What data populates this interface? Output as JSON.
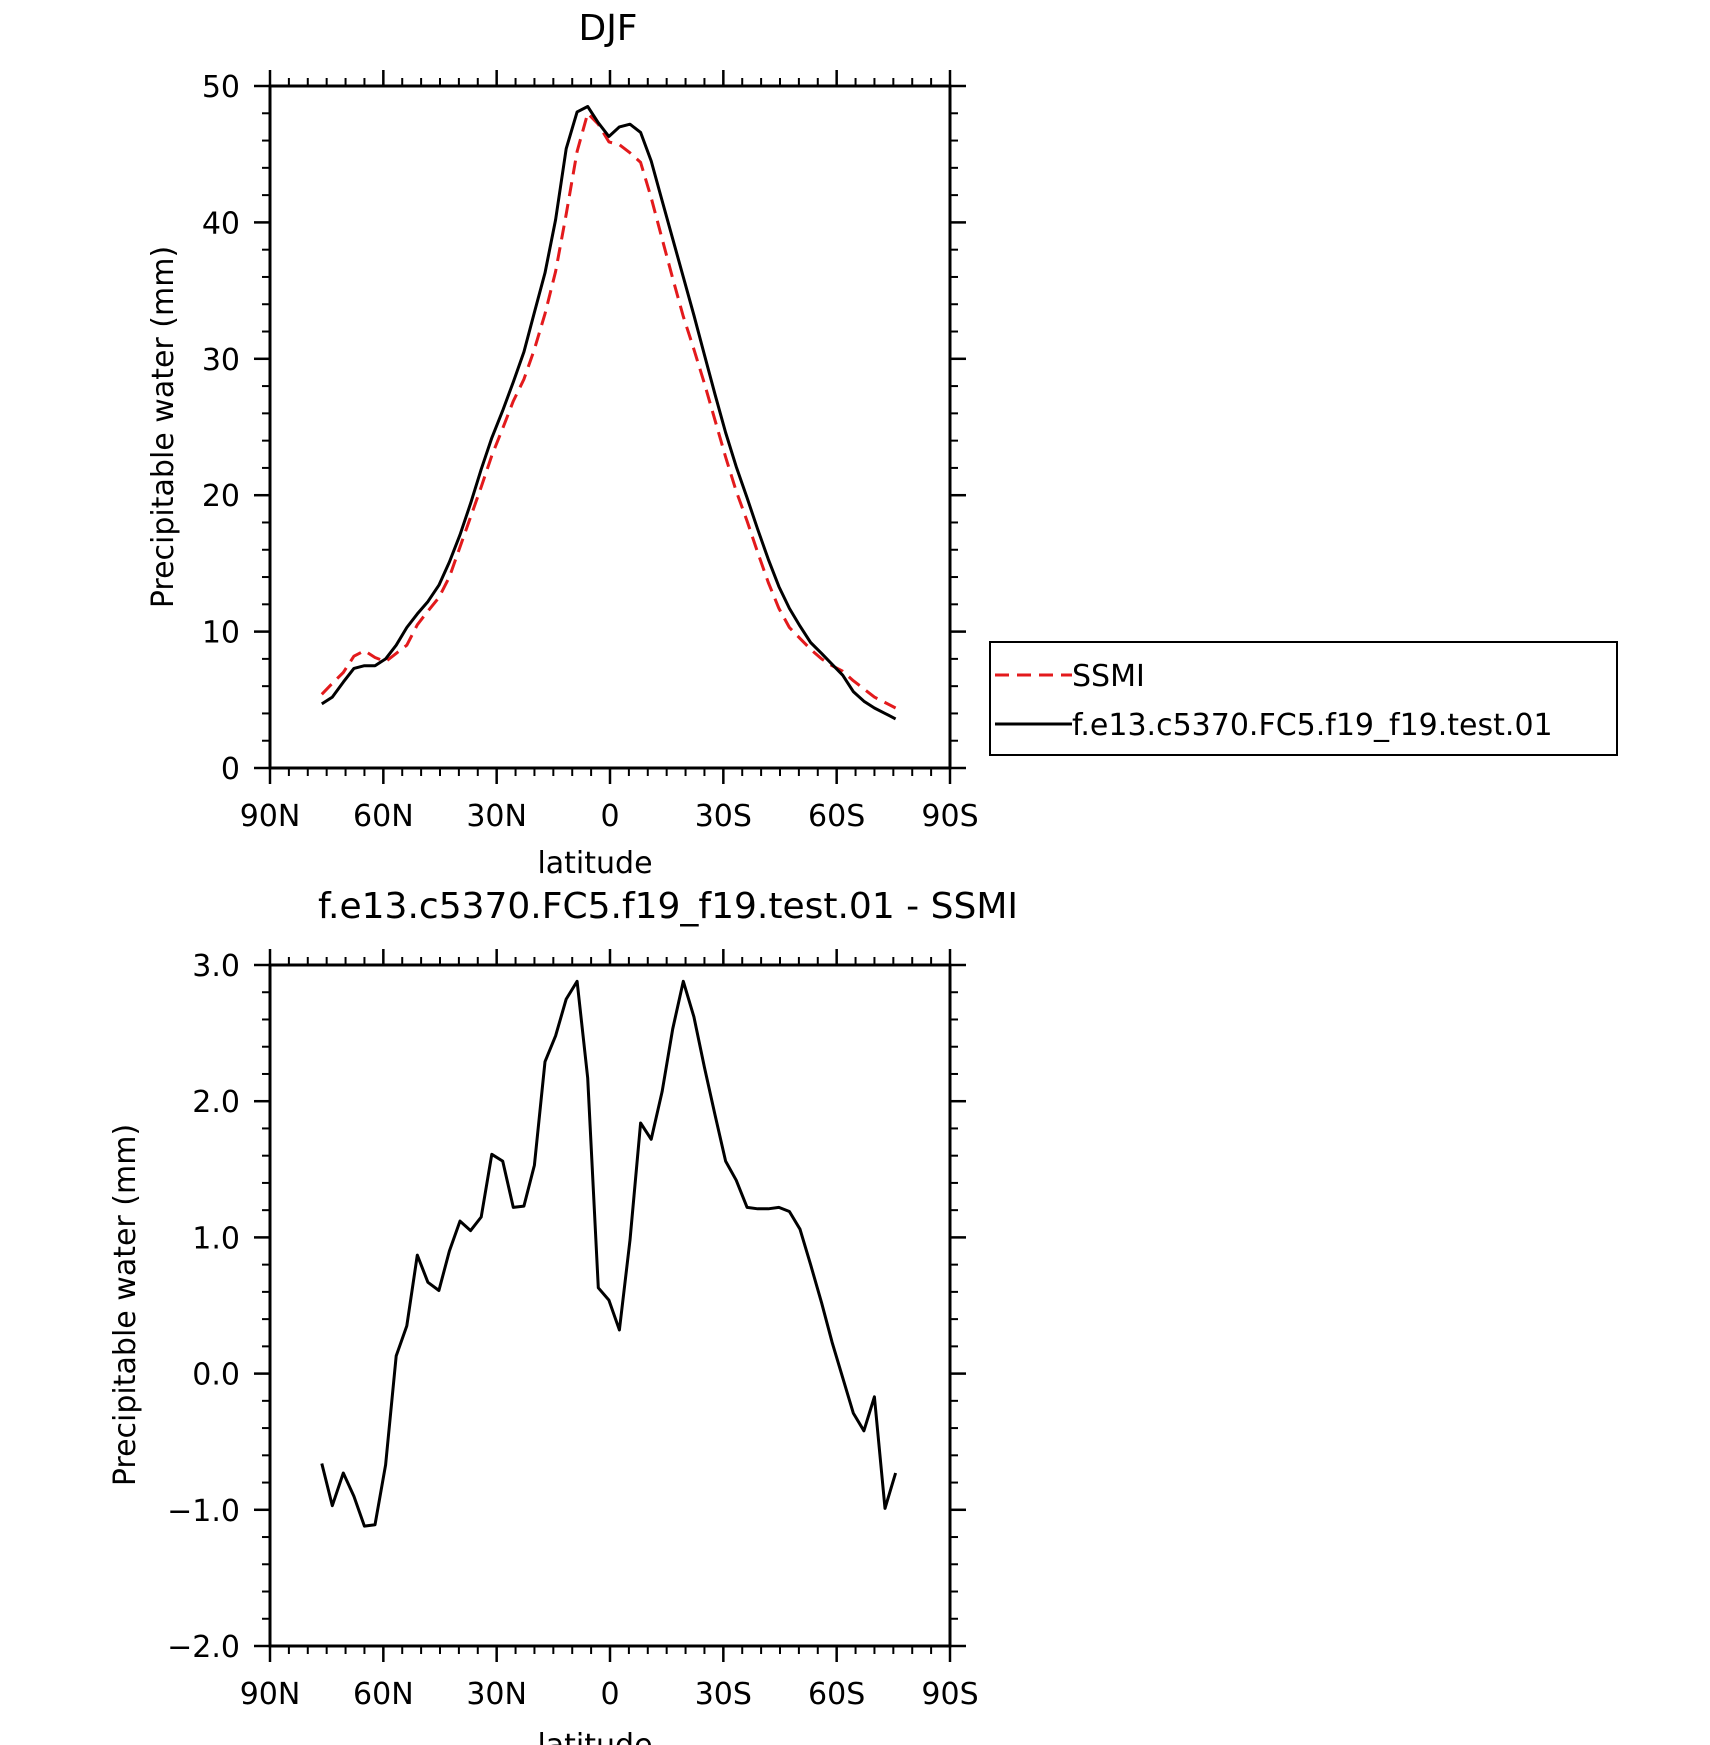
{
  "chart_data": [
    {
      "type": "line",
      "title": "DJF",
      "xlabel": "latitude",
      "ylabel": "Precipitable water (mm)",
      "xlim": [
        90,
        -90
      ],
      "ylim": [
        0,
        50
      ],
      "x_ticks": [
        90,
        60,
        30,
        0,
        -30,
        -60,
        -90
      ],
      "x_tick_labels": [
        "90N",
        "60N",
        "30N",
        "0",
        "30S",
        "60S",
        "90S"
      ],
      "y_ticks": [
        0,
        10,
        20,
        30,
        40,
        50
      ],
      "y_tick_labels": [
        "0",
        "10",
        "20",
        "30",
        "40",
        "50"
      ],
      "grid": false,
      "legend_position": "right",
      "series": [
        {
          "name": "SSMI",
          "color": "#e31a1c",
          "dash": "dashed",
          "x": [
            76.3,
            73.5,
            70.6,
            67.8,
            65.0,
            62.2,
            59.4,
            56.6,
            53.8,
            51.0,
            48.2,
            45.3,
            42.5,
            39.7,
            36.9,
            34.1,
            31.3,
            28.4,
            25.6,
            22.8,
            20.0,
            17.2,
            14.4,
            11.6,
            8.7,
            5.9,
            3.1,
            0.3,
            -2.5,
            -5.3,
            -8.1,
            -10.9,
            -13.8,
            -16.6,
            -19.4,
            -22.2,
            -25.0,
            -27.8,
            -30.6,
            -33.4,
            -36.3,
            -39.1,
            -41.9,
            -44.7,
            -47.5,
            -50.3,
            -53.1,
            -56.0,
            -58.8,
            -61.6,
            -64.4,
            -67.2,
            -70.0,
            -72.8,
            -75.6
          ],
          "values": [
            5.4,
            6.2,
            7.0,
            8.2,
            8.6,
            8.1,
            7.8,
            8.4,
            9.0,
            10.5,
            11.5,
            12.5,
            14.0,
            16.2,
            18.4,
            20.6,
            22.9,
            24.9,
            26.9,
            28.5,
            30.7,
            33.3,
            36.4,
            40.6,
            45.2,
            48.0,
            47.2,
            45.9,
            45.7,
            45.1,
            44.4,
            41.8,
            38.8,
            35.9,
            33.1,
            30.7,
            28.2,
            25.5,
            22.8,
            20.3,
            18.1,
            15.8,
            13.6,
            11.7,
            10.3,
            9.5,
            8.7,
            8.0,
            7.5,
            7.1,
            6.4,
            5.8,
            5.2,
            4.8,
            4.4
          ]
        },
        {
          "name": "f.e13.c5370.FC5.f19_f19.test.01",
          "color": "#000000",
          "dash": "solid",
          "x": [
            76.3,
            73.5,
            70.6,
            67.8,
            65.0,
            62.2,
            59.4,
            56.6,
            53.8,
            51.0,
            48.2,
            45.3,
            42.5,
            39.7,
            36.9,
            34.1,
            31.3,
            28.4,
            25.6,
            22.8,
            20.0,
            17.2,
            14.4,
            11.6,
            8.7,
            5.9,
            3.1,
            0.3,
            -2.5,
            -5.3,
            -8.1,
            -10.9,
            -13.8,
            -16.6,
            -19.4,
            -22.2,
            -25.0,
            -27.8,
            -30.6,
            -33.4,
            -36.3,
            -39.1,
            -41.9,
            -44.7,
            -47.5,
            -50.3,
            -53.1,
            -56.0,
            -58.8,
            -61.6,
            -64.4,
            -67.2,
            -70.0,
            -72.8,
            -75.6
          ],
          "values": [
            4.7,
            5.2,
            6.3,
            7.3,
            7.5,
            7.5,
            8.0,
            9.0,
            10.3,
            11.3,
            12.2,
            13.4,
            15.1,
            17.1,
            19.4,
            21.9,
            24.2,
            26.2,
            28.3,
            30.5,
            33.4,
            36.3,
            40.2,
            45.4,
            48.1,
            48.5,
            47.3,
            46.3,
            47.0,
            47.2,
            46.6,
            44.5,
            41.6,
            38.8,
            36.0,
            33.2,
            30.3,
            27.4,
            24.6,
            22.1,
            19.8,
            17.5,
            15.3,
            13.3,
            11.7,
            10.4,
            9.2,
            8.4,
            7.6,
            6.8,
            5.6,
            4.9,
            4.4,
            4.0,
            3.6
          ]
        }
      ]
    },
    {
      "type": "line",
      "title": "f.e13.c5370.FC5.f19_f19.test.01 - SSMI",
      "xlabel": "latitude",
      "ylabel": "Precipitable water (mm)",
      "xlim": [
        90,
        -90
      ],
      "ylim": [
        -2.0,
        3.0
      ],
      "x_ticks": [
        90,
        60,
        30,
        0,
        -30,
        -60,
        -90
      ],
      "x_tick_labels": [
        "90N",
        "60N",
        "30N",
        "0",
        "30S",
        "60S",
        "90S"
      ],
      "y_ticks": [
        -2.0,
        -1.0,
        0.0,
        1.0,
        2.0,
        3.0
      ],
      "y_tick_labels": [
        "−2.0",
        "−1.0",
        "0.0",
        "1.0",
        "2.0",
        "3.0"
      ],
      "grid": false,
      "series": [
        {
          "color": "#000000",
          "dash": "solid",
          "x": [
            76.3,
            73.5,
            70.6,
            67.8,
            65.0,
            62.2,
            59.4,
            56.6,
            53.8,
            51.0,
            48.2,
            45.3,
            42.5,
            39.7,
            36.9,
            34.1,
            31.3,
            28.4,
            25.6,
            22.8,
            20.0,
            17.2,
            14.4,
            11.6,
            8.7,
            5.9,
            3.1,
            0.3,
            -2.5,
            -5.3,
            -8.1,
            -10.9,
            -13.8,
            -16.6,
            -19.4,
            -22.2,
            -25.0,
            -27.8,
            -30.6,
            -33.4,
            -36.3,
            -39.1,
            -41.9,
            -44.7,
            -47.5,
            -50.3,
            -53.1,
            -56.0,
            -58.8,
            -61.6,
            -64.4,
            -67.2,
            -70.0,
            -72.8,
            -75.6
          ],
          "values": [
            -0.66,
            -0.97,
            -0.73,
            -0.9,
            -1.12,
            -1.11,
            -0.67,
            0.13,
            0.35,
            0.87,
            0.67,
            0.61,
            0.9,
            1.12,
            1.05,
            1.15,
            1.61,
            1.56,
            1.22,
            1.23,
            1.53,
            2.29,
            2.48,
            2.75,
            2.88,
            2.17,
            0.63,
            0.54,
            0.32,
            0.98,
            1.84,
            1.72,
            2.07,
            2.53,
            2.88,
            2.62,
            2.25,
            1.9,
            1.56,
            1.42,
            1.22,
            1.21,
            1.21,
            1.22,
            1.19,
            1.06,
            0.8,
            0.52,
            0.23,
            -0.03,
            -0.29,
            -0.42,
            -0.17,
            -0.99,
            -0.73
          ]
        }
      ]
    }
  ]
}
